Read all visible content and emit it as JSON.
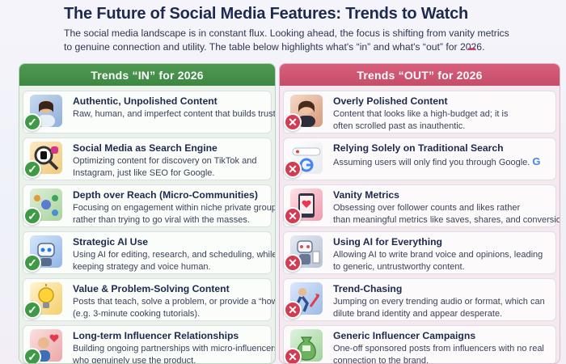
{
  "page": {
    "title": "The Future of Social Media Features: Trends to Watch",
    "intro_lines": [
      "The social media landscape is in constant flux. Looking ahead, the focus is shifting from vanity metrics",
      "to genuine connection and utility. The table below highlights what's “in” and what's “out” for 2026."
    ]
  },
  "colors": {
    "in_accent": "#3e8743",
    "out_accent": "#c44d6a"
  },
  "in_column": {
    "header": "Trends “IN” for 2026",
    "rows": [
      {
        "title": "Authentic, Unpolished Content",
        "desc": [
          "Raw, human, and imperfect content that builds trust."
        ],
        "icon": "selfie-woman-icon"
      },
      {
        "title": "Social Media as Search Engine",
        "desc": [
          "Optimizing content for discovery on TikTok and",
          "Instagram, just like SEO for Google."
        ],
        "icon": "magnifier-social-icon"
      },
      {
        "title": "Depth over Reach (Micro-Communities)",
        "desc": [
          "Focusing on engagement within niche private groups",
          "rather than trying to go viral with the masses."
        ],
        "icon": "community-chat-icon"
      },
      {
        "title": "Strategic AI Use",
        "desc": [
          "Using AI for editing, research, and scheduling, while",
          "keeping strategy and voice human."
        ],
        "icon": "robot-assistant-icon"
      },
      {
        "title": "Value & Problem-Solving Content",
        "desc": [
          "Posts that teach, solve a problem, or provide a “how-to”",
          "(e.g. 3-minute cooking tutorials)."
        ],
        "icon": "lightbulb-icon"
      },
      {
        "title": "Long-term Influencer Relationships",
        "desc": [
          "Building ongoing partnerships with micro-influencers",
          "who genuinely use the product."
        ],
        "icon": "influencer-heart-icon"
      }
    ]
  },
  "out_column": {
    "header": "Trends “OUT” for 2026",
    "rows": [
      {
        "title": "Overly Polished Content",
        "desc": [
          "Content that looks like a high-budget ad; it is",
          "often scrolled past as inauthentic."
        ],
        "icon": "polished-portrait-icon"
      },
      {
        "title": "Relying Solely on Traditional Search",
        "desc": [
          "Assuming users will only find you through Google."
        ],
        "icon": "search-bar-icon"
      },
      {
        "title": "Vanity Metrics",
        "desc": [
          "Obsessing over follower counts and likes rather",
          "than meaningful metrics like saves, shares, and conversions."
        ],
        "icon": "likes-counter-icon"
      },
      {
        "title": "Using AI for Everything",
        "desc": [
          "Allowing AI to write brand voice and opinions, leading",
          "to generic, untrustworthy content."
        ],
        "icon": "robot-writer-icon"
      },
      {
        "title": "Trend-Chasing",
        "desc": [
          "Jumping on every trending audio or format, which can",
          "dilute brand identity and appear desperate."
        ],
        "icon": "trend-runner-icon"
      },
      {
        "title": "Generic Influencer Campaigns",
        "desc": [
          "One-off sponsored posts from influencers with no real",
          "connection to the brand."
        ],
        "icon": "money-bag-icon"
      }
    ]
  },
  "badges": {
    "in_symbol": "✓",
    "out_symbol": "✕"
  }
}
